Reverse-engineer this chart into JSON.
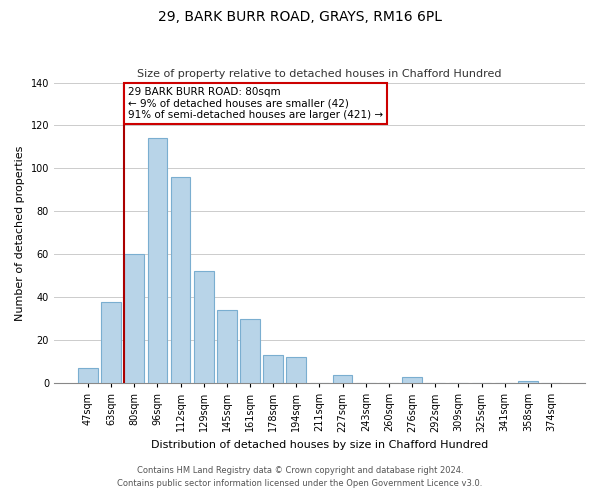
{
  "title": "29, BARK BURR ROAD, GRAYS, RM16 6PL",
  "subtitle": "Size of property relative to detached houses in Chafford Hundred",
  "xlabel": "Distribution of detached houses by size in Chafford Hundred",
  "ylabel": "Number of detached properties",
  "footnote1": "Contains HM Land Registry data © Crown copyright and database right 2024.",
  "footnote2": "Contains public sector information licensed under the Open Government Licence v3.0.",
  "annotation_line1": "29 BARK BURR ROAD: 80sqm",
  "annotation_line2": "← 9% of detached houses are smaller (42)",
  "annotation_line3": "91% of semi-detached houses are larger (421) →",
  "property_line_x": "80sqm",
  "bar_labels": [
    "47sqm",
    "63sqm",
    "80sqm",
    "96sqm",
    "112sqm",
    "129sqm",
    "145sqm",
    "161sqm",
    "178sqm",
    "194sqm",
    "211sqm",
    "227sqm",
    "243sqm",
    "260sqm",
    "276sqm",
    "292sqm",
    "309sqm",
    "325sqm",
    "341sqm",
    "358sqm",
    "374sqm"
  ],
  "bar_values": [
    7,
    38,
    60,
    114,
    96,
    52,
    34,
    30,
    13,
    12,
    0,
    4,
    0,
    0,
    3,
    0,
    0,
    0,
    0,
    1,
    0
  ],
  "bar_color": "#b8d4e8",
  "bar_edge_color": "#7aaed0",
  "property_line_color": "#aa0000",
  "ylim": [
    0,
    140
  ],
  "yticks": [
    0,
    20,
    40,
    60,
    80,
    100,
    120,
    140
  ],
  "annotation_box_edge_color": "#cc0000",
  "annotation_box_face_color": "#ffffff",
  "background_color": "#ffffff",
  "grid_color": "#cccccc",
  "title_fontsize": 10,
  "subtitle_fontsize": 8,
  "ylabel_fontsize": 8,
  "tick_fontsize": 7,
  "annotation_fontsize": 7.5,
  "xlabel_fontsize": 8,
  "footnote_fontsize": 6
}
